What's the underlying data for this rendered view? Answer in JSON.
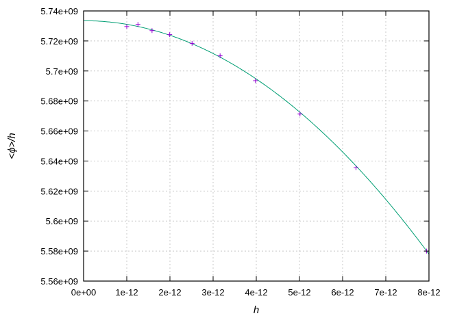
{
  "chart_data": {
    "type": "scatter",
    "title": "",
    "xlabel": "h",
    "ylabel": "<ϕ>/h",
    "xlim": [
      0,
      8e-12
    ],
    "ylim": [
      5560000000.0,
      5740000000.0
    ],
    "grid": true,
    "x_ticks": [
      0,
      1e-12,
      2e-12,
      3e-12,
      4e-12,
      5e-12,
      6e-12,
      7e-12,
      8e-12
    ],
    "x_tick_labels": [
      "0e+00",
      "1e-12",
      "2e-12",
      "3e-12",
      "4e-12",
      "5e-12",
      "6e-12",
      "7e-12",
      "8e-12"
    ],
    "y_ticks": [
      5560000000.0,
      5580000000.0,
      5600000000.0,
      5620000000.0,
      5640000000.0,
      5660000000.0,
      5680000000.0,
      5700000000.0,
      5720000000.0,
      5740000000.0
    ],
    "y_tick_labels": [
      "5.56e+09",
      "5.58e+09",
      "5.6e+09",
      "5.62e+09",
      "5.64e+09",
      "5.66e+09",
      "5.68e+09",
      "5.7e+09",
      "5.72e+09",
      "5.74e+09"
    ],
    "series": [
      {
        "kind": "points",
        "marker": "+",
        "color": "#9400d3",
        "x": [
          1e-12,
          1.259e-12,
          1.585e-12,
          1.995e-12,
          2.512e-12,
          3.162e-12,
          3.981e-12,
          5.012e-12,
          6.31e-12,
          7.943e-12
        ],
        "y": [
          5729600000.0,
          5731000000.0,
          5726900000.0,
          5724200000.0,
          5718400000.0,
          5710100000.0,
          5693500000.0,
          5671300000.0,
          5635500000.0,
          5580000000.0
        ]
      },
      {
        "kind": "fit",
        "color": "#009e73",
        "model": "a + b*h^2",
        "a": 5733500000.0,
        "b": -2.43e+30
      }
    ]
  }
}
